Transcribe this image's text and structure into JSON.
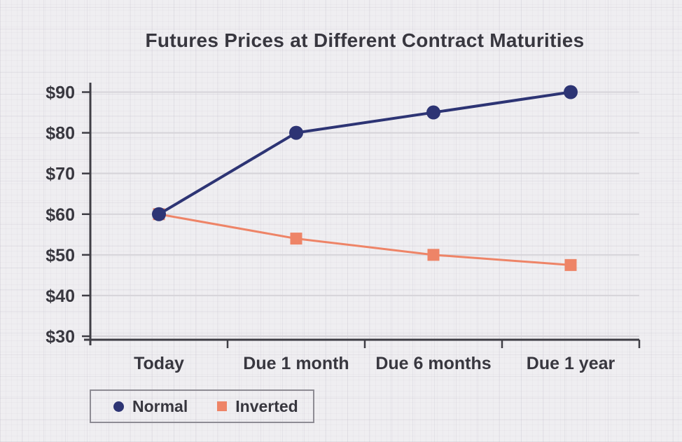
{
  "title": "Futures Prices at Different Contract Maturities",
  "colors": {
    "background": "#efeef1",
    "text": "#38373f",
    "axis": "#3f3e45",
    "gridline": "#d6d4d9",
    "legend_border": "#8e8c94",
    "normal_series": "#2d3474",
    "inverted_series": "#ee8467"
  },
  "chart_data": {
    "type": "line",
    "title": "Futures Prices at Different Contract Maturities",
    "categories": [
      "Today",
      "Due 1 month",
      "Due 6 months",
      "Due 1 year"
    ],
    "series": [
      {
        "name": "Normal",
        "marker": "circle",
        "color": "#2d3474",
        "values": [
          60,
          80,
          85,
          90
        ]
      },
      {
        "name": "Inverted",
        "marker": "square",
        "color": "#ee8467",
        "values": [
          60,
          54,
          50,
          47.5
        ]
      }
    ],
    "xlabel": "",
    "ylabel": "",
    "y_ticks": [
      30,
      40,
      50,
      60,
      70,
      80,
      90
    ],
    "y_tick_labels": [
      "$30",
      "$40",
      "$50",
      "$60",
      "$70",
      "$80",
      "$90"
    ],
    "ylim": [
      27,
      92
    ],
    "grid": "horizontal",
    "legend_position": "bottom-left"
  },
  "legend": {
    "items": [
      {
        "label": "Normal",
        "marker": "circle",
        "color": "#2d3474"
      },
      {
        "label": "Inverted",
        "marker": "square",
        "color": "#ee8467"
      }
    ]
  }
}
